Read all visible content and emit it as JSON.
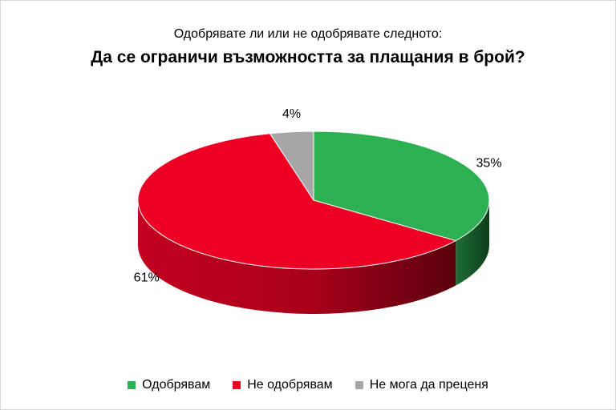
{
  "chart_data": {
    "type": "pie",
    "subtitle": "Одобрявате ли или не одобрявате следното:",
    "title": "Да се ограничи възможността за плащания в брой?",
    "slices": [
      {
        "name": "Одобрявам",
        "value": 35,
        "label": "35%",
        "color": "#2db052",
        "side_color": "#145a28"
      },
      {
        "name": "Не одобрявам",
        "value": 61,
        "label": "61%",
        "color": "#ee0025",
        "side_color": "#9a0016"
      },
      {
        "name": "Не мога да преценя",
        "value": 4,
        "label": "4%",
        "color": "#a6a6a6",
        "side_color": "#6e6e6e"
      }
    ],
    "style": "3d",
    "legend_position": "bottom"
  }
}
